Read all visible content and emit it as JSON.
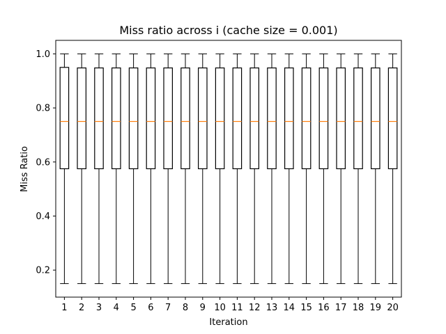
{
  "chart_data": {
    "type": "box",
    "title": "Miss ratio across i (cache size = 0.001)",
    "xlabel": "Iteration",
    "ylabel": "Miss Ratio",
    "ylim": [
      0.1,
      1.05
    ],
    "yticks": [
      "0.2",
      "0.4",
      "0.6",
      "0.8",
      "1.0"
    ],
    "categories": [
      "1",
      "2",
      "3",
      "4",
      "5",
      "6",
      "7",
      "8",
      "9",
      "10",
      "11",
      "12",
      "13",
      "14",
      "15",
      "16",
      "17",
      "18",
      "19",
      "20"
    ],
    "boxes": [
      {
        "whisker_low": 0.15,
        "q1": 0.575,
        "median": 0.75,
        "q3": 0.95,
        "whisker_high": 1.0
      },
      {
        "whisker_low": 0.15,
        "q1": 0.575,
        "median": 0.75,
        "q3": 0.948,
        "whisker_high": 1.0
      },
      {
        "whisker_low": 0.15,
        "q1": 0.575,
        "median": 0.75,
        "q3": 0.948,
        "whisker_high": 1.0
      },
      {
        "whisker_low": 0.15,
        "q1": 0.575,
        "median": 0.75,
        "q3": 0.948,
        "whisker_high": 1.0
      },
      {
        "whisker_low": 0.15,
        "q1": 0.575,
        "median": 0.75,
        "q3": 0.948,
        "whisker_high": 1.0
      },
      {
        "whisker_low": 0.15,
        "q1": 0.575,
        "median": 0.75,
        "q3": 0.948,
        "whisker_high": 1.0
      },
      {
        "whisker_low": 0.15,
        "q1": 0.575,
        "median": 0.75,
        "q3": 0.948,
        "whisker_high": 1.0
      },
      {
        "whisker_low": 0.15,
        "q1": 0.575,
        "median": 0.75,
        "q3": 0.948,
        "whisker_high": 1.0
      },
      {
        "whisker_low": 0.15,
        "q1": 0.575,
        "median": 0.75,
        "q3": 0.948,
        "whisker_high": 1.0
      },
      {
        "whisker_low": 0.15,
        "q1": 0.575,
        "median": 0.75,
        "q3": 0.948,
        "whisker_high": 1.0
      },
      {
        "whisker_low": 0.15,
        "q1": 0.575,
        "median": 0.75,
        "q3": 0.948,
        "whisker_high": 1.0
      },
      {
        "whisker_low": 0.15,
        "q1": 0.575,
        "median": 0.75,
        "q3": 0.948,
        "whisker_high": 1.0
      },
      {
        "whisker_low": 0.15,
        "q1": 0.575,
        "median": 0.75,
        "q3": 0.948,
        "whisker_high": 1.0
      },
      {
        "whisker_low": 0.15,
        "q1": 0.575,
        "median": 0.75,
        "q3": 0.948,
        "whisker_high": 1.0
      },
      {
        "whisker_low": 0.15,
        "q1": 0.575,
        "median": 0.75,
        "q3": 0.948,
        "whisker_high": 1.0
      },
      {
        "whisker_low": 0.15,
        "q1": 0.575,
        "median": 0.75,
        "q3": 0.948,
        "whisker_high": 1.0
      },
      {
        "whisker_low": 0.15,
        "q1": 0.575,
        "median": 0.75,
        "q3": 0.948,
        "whisker_high": 1.0
      },
      {
        "whisker_low": 0.15,
        "q1": 0.575,
        "median": 0.75,
        "q3": 0.948,
        "whisker_high": 1.0
      },
      {
        "whisker_low": 0.15,
        "q1": 0.575,
        "median": 0.75,
        "q3": 0.948,
        "whisker_high": 1.0
      },
      {
        "whisker_low": 0.15,
        "q1": 0.575,
        "median": 0.75,
        "q3": 0.948,
        "whisker_high": 1.0
      }
    ],
    "grid": false,
    "colors": {
      "box": "#000000",
      "median": "#ff7f0e",
      "axes": "#000000",
      "background": "#ffffff"
    }
  }
}
